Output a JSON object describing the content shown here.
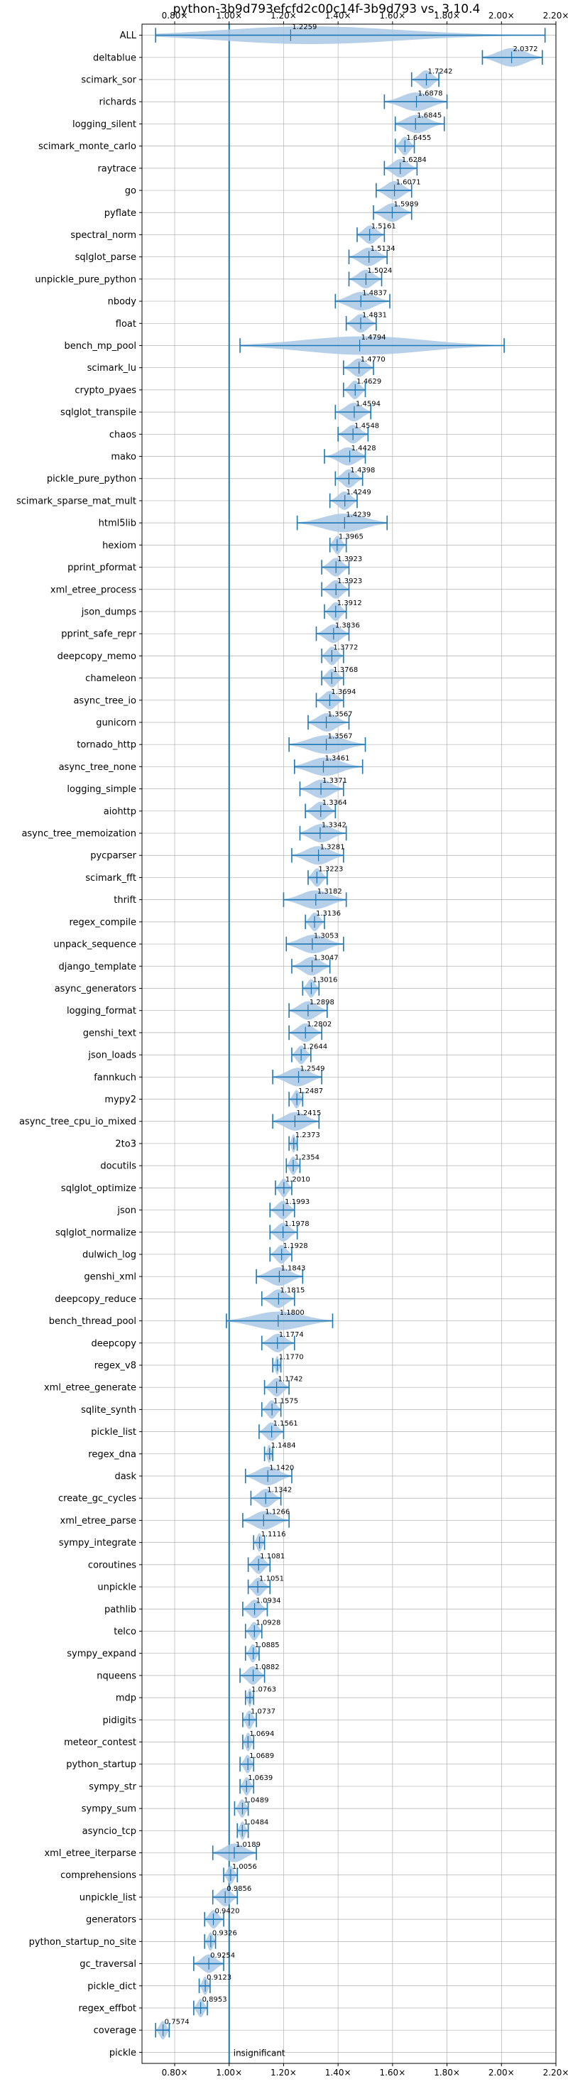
{
  "chart_data": {
    "type": "violin",
    "title": "python-3b9d793efcfd2c00c14f-3b9d793 vs. 3.10.4",
    "xlim": [
      0.68,
      2.2
    ],
    "x_ticks": [
      0.8,
      1.0,
      1.2,
      1.4,
      1.6,
      1.8,
      2.0,
      2.2
    ],
    "x_tick_labels": [
      "0.80×",
      "1.00×",
      "1.20×",
      "1.40×",
      "1.60×",
      "1.80×",
      "2.00×",
      "2.20×"
    ],
    "grid": true,
    "reference_line": 1.0,
    "colors": {
      "accent": "#1f77b4",
      "violin": "#a8c8e4",
      "grid": "#b0b0b0"
    },
    "rows": [
      {
        "name": "ALL",
        "value": 1.2259,
        "min": 0.73,
        "max": 2.16
      },
      {
        "name": "deltablue",
        "value": 2.0372,
        "min": 1.93,
        "max": 2.15
      },
      {
        "name": "scimark_sor",
        "value": 1.7242,
        "min": 1.67,
        "max": 1.77
      },
      {
        "name": "richards",
        "value": 1.6878,
        "min": 1.57,
        "max": 1.8
      },
      {
        "name": "logging_silent",
        "value": 1.6845,
        "min": 1.61,
        "max": 1.79
      },
      {
        "name": "scimark_monte_carlo",
        "value": 1.6455,
        "min": 1.61,
        "max": 1.68
      },
      {
        "name": "raytrace",
        "value": 1.6284,
        "min": 1.57,
        "max": 1.69
      },
      {
        "name": "go",
        "value": 1.6071,
        "min": 1.54,
        "max": 1.67
      },
      {
        "name": "pyflate",
        "value": 1.5989,
        "min": 1.53,
        "max": 1.67
      },
      {
        "name": "spectral_norm",
        "value": 1.5161,
        "min": 1.47,
        "max": 1.57
      },
      {
        "name": "sqlglot_parse",
        "value": 1.5134,
        "min": 1.44,
        "max": 1.58
      },
      {
        "name": "unpickle_pure_python",
        "value": 1.5024,
        "min": 1.44,
        "max": 1.56
      },
      {
        "name": "nbody",
        "value": 1.4837,
        "min": 1.39,
        "max": 1.59
      },
      {
        "name": "float",
        "value": 1.4831,
        "min": 1.43,
        "max": 1.54
      },
      {
        "name": "bench_mp_pool",
        "value": 1.4794,
        "min": 1.04,
        "max": 2.01
      },
      {
        "name": "scimark_lu",
        "value": 1.477,
        "min": 1.42,
        "max": 1.53
      },
      {
        "name": "crypto_pyaes",
        "value": 1.4629,
        "min": 1.42,
        "max": 1.5
      },
      {
        "name": "sqlglot_transpile",
        "value": 1.4594,
        "min": 1.39,
        "max": 1.52
      },
      {
        "name": "chaos",
        "value": 1.4548,
        "min": 1.4,
        "max": 1.51
      },
      {
        "name": "mako",
        "value": 1.4428,
        "min": 1.35,
        "max": 1.5
      },
      {
        "name": "pickle_pure_python",
        "value": 1.4398,
        "min": 1.39,
        "max": 1.49
      },
      {
        "name": "scimark_sparse_mat_mult",
        "value": 1.4249,
        "min": 1.37,
        "max": 1.47
      },
      {
        "name": "html5lib",
        "value": 1.4239,
        "min": 1.25,
        "max": 1.58
      },
      {
        "name": "hexiom",
        "value": 1.3965,
        "min": 1.37,
        "max": 1.43
      },
      {
        "name": "pprint_pformat",
        "value": 1.3923,
        "min": 1.34,
        "max": 1.44
      },
      {
        "name": "xml_etree_process",
        "value": 1.3923,
        "min": 1.34,
        "max": 1.44
      },
      {
        "name": "json_dumps",
        "value": 1.3912,
        "min": 1.35,
        "max": 1.43
      },
      {
        "name": "pprint_safe_repr",
        "value": 1.3836,
        "min": 1.32,
        "max": 1.44
      },
      {
        "name": "deepcopy_memo",
        "value": 1.3772,
        "min": 1.34,
        "max": 1.42
      },
      {
        "name": "chameleon",
        "value": 1.3768,
        "min": 1.34,
        "max": 1.42
      },
      {
        "name": "async_tree_io",
        "value": 1.3694,
        "min": 1.32,
        "max": 1.42
      },
      {
        "name": "gunicorn",
        "value": 1.3567,
        "min": 1.29,
        "max": 1.44
      },
      {
        "name": "tornado_http",
        "value": 1.3567,
        "min": 1.22,
        "max": 1.5
      },
      {
        "name": "async_tree_none",
        "value": 1.3461,
        "min": 1.24,
        "max": 1.49
      },
      {
        "name": "logging_simple",
        "value": 1.3371,
        "min": 1.26,
        "max": 1.42
      },
      {
        "name": "aiohttp",
        "value": 1.3364,
        "min": 1.28,
        "max": 1.39
      },
      {
        "name": "async_tree_memoization",
        "value": 1.3342,
        "min": 1.26,
        "max": 1.43
      },
      {
        "name": "pycparser",
        "value": 1.3281,
        "min": 1.23,
        "max": 1.42
      },
      {
        "name": "scimark_fft",
        "value": 1.3223,
        "min": 1.29,
        "max": 1.36
      },
      {
        "name": "thrift",
        "value": 1.3182,
        "min": 1.2,
        "max": 1.43
      },
      {
        "name": "regex_compile",
        "value": 1.3136,
        "min": 1.28,
        "max": 1.35
      },
      {
        "name": "unpack_sequence",
        "value": 1.3053,
        "min": 1.21,
        "max": 1.42
      },
      {
        "name": "django_template",
        "value": 1.3047,
        "min": 1.23,
        "max": 1.37
      },
      {
        "name": "async_generators",
        "value": 1.3016,
        "min": 1.27,
        "max": 1.33
      },
      {
        "name": "logging_format",
        "value": 1.2898,
        "min": 1.22,
        "max": 1.36
      },
      {
        "name": "genshi_text",
        "value": 1.2802,
        "min": 1.22,
        "max": 1.34
      },
      {
        "name": "json_loads",
        "value": 1.2644,
        "min": 1.23,
        "max": 1.3
      },
      {
        "name": "fannkuch",
        "value": 1.2549,
        "min": 1.16,
        "max": 1.34
      },
      {
        "name": "mypy2",
        "value": 1.2487,
        "min": 1.22,
        "max": 1.27
      },
      {
        "name": "async_tree_cpu_io_mixed",
        "value": 1.2415,
        "min": 1.16,
        "max": 1.33
      },
      {
        "name": "2to3",
        "value": 1.2373,
        "min": 1.22,
        "max": 1.25
      },
      {
        "name": "docutils",
        "value": 1.2354,
        "min": 1.21,
        "max": 1.26
      },
      {
        "name": "sqlglot_optimize",
        "value": 1.201,
        "min": 1.17,
        "max": 1.23
      },
      {
        "name": "json",
        "value": 1.1993,
        "min": 1.15,
        "max": 1.24
      },
      {
        "name": "sqlglot_normalize",
        "value": 1.1978,
        "min": 1.15,
        "max": 1.25
      },
      {
        "name": "dulwich_log",
        "value": 1.1928,
        "min": 1.15,
        "max": 1.23
      },
      {
        "name": "genshi_xml",
        "value": 1.1843,
        "min": 1.1,
        "max": 1.27
      },
      {
        "name": "deepcopy_reduce",
        "value": 1.1815,
        "min": 1.12,
        "max": 1.24
      },
      {
        "name": "bench_thread_pool",
        "value": 1.18,
        "min": 0.99,
        "max": 1.38
      },
      {
        "name": "deepcopy",
        "value": 1.1774,
        "min": 1.12,
        "max": 1.24
      },
      {
        "name": "regex_v8",
        "value": 1.177,
        "min": 1.16,
        "max": 1.19
      },
      {
        "name": "xml_etree_generate",
        "value": 1.1742,
        "min": 1.13,
        "max": 1.22
      },
      {
        "name": "sqlite_synth",
        "value": 1.1575,
        "min": 1.12,
        "max": 1.19
      },
      {
        "name": "pickle_list",
        "value": 1.1561,
        "min": 1.11,
        "max": 1.2
      },
      {
        "name": "regex_dna",
        "value": 1.1484,
        "min": 1.13,
        "max": 1.16
      },
      {
        "name": "dask",
        "value": 1.142,
        "min": 1.06,
        "max": 1.23
      },
      {
        "name": "create_gc_cycles",
        "value": 1.1342,
        "min": 1.08,
        "max": 1.19
      },
      {
        "name": "xml_etree_parse",
        "value": 1.1266,
        "min": 1.05,
        "max": 1.22
      },
      {
        "name": "sympy_integrate",
        "value": 1.1116,
        "min": 1.09,
        "max": 1.13
      },
      {
        "name": "coroutines",
        "value": 1.1081,
        "min": 1.07,
        "max": 1.15
      },
      {
        "name": "unpickle",
        "value": 1.1051,
        "min": 1.07,
        "max": 1.15
      },
      {
        "name": "pathlib",
        "value": 1.0934,
        "min": 1.05,
        "max": 1.14
      },
      {
        "name": "telco",
        "value": 1.0928,
        "min": 1.06,
        "max": 1.12
      },
      {
        "name": "sympy_expand",
        "value": 1.0885,
        "min": 1.06,
        "max": 1.11
      },
      {
        "name": "nqueens",
        "value": 1.0882,
        "min": 1.04,
        "max": 1.13
      },
      {
        "name": "mdp",
        "value": 1.0763,
        "min": 1.06,
        "max": 1.09
      },
      {
        "name": "pidigits",
        "value": 1.0737,
        "min": 1.05,
        "max": 1.1
      },
      {
        "name": "meteor_contest",
        "value": 1.0694,
        "min": 1.05,
        "max": 1.09
      },
      {
        "name": "python_startup",
        "value": 1.0689,
        "min": 1.04,
        "max": 1.09
      },
      {
        "name": "sympy_str",
        "value": 1.0639,
        "min": 1.04,
        "max": 1.09
      },
      {
        "name": "sympy_sum",
        "value": 1.0489,
        "min": 1.02,
        "max": 1.07
      },
      {
        "name": "asyncio_tcp",
        "value": 1.0484,
        "min": 1.03,
        "max": 1.07
      },
      {
        "name": "xml_etree_iterparse",
        "value": 1.0189,
        "min": 0.94,
        "max": 1.1
      },
      {
        "name": "comprehensions",
        "value": 1.0056,
        "min": 0.98,
        "max": 1.03
      },
      {
        "name": "unpickle_list",
        "value": 0.9856,
        "min": 0.94,
        "max": 1.03
      },
      {
        "name": "generators",
        "value": 0.942,
        "min": 0.91,
        "max": 0.98
      },
      {
        "name": "python_startup_no_site",
        "value": 0.9326,
        "min": 0.91,
        "max": 0.95
      },
      {
        "name": "gc_traversal",
        "value": 0.9254,
        "min": 0.87,
        "max": 0.98
      },
      {
        "name": "pickle_dict",
        "value": 0.9123,
        "min": 0.89,
        "max": 0.93
      },
      {
        "name": "regex_effbot",
        "value": 0.8953,
        "min": 0.87,
        "max": 0.92
      },
      {
        "name": "coverage",
        "value": 0.7574,
        "min": 0.73,
        "max": 0.78
      },
      {
        "name": "pickle",
        "value": null,
        "min": null,
        "max": null,
        "note": "insignificant"
      }
    ]
  }
}
